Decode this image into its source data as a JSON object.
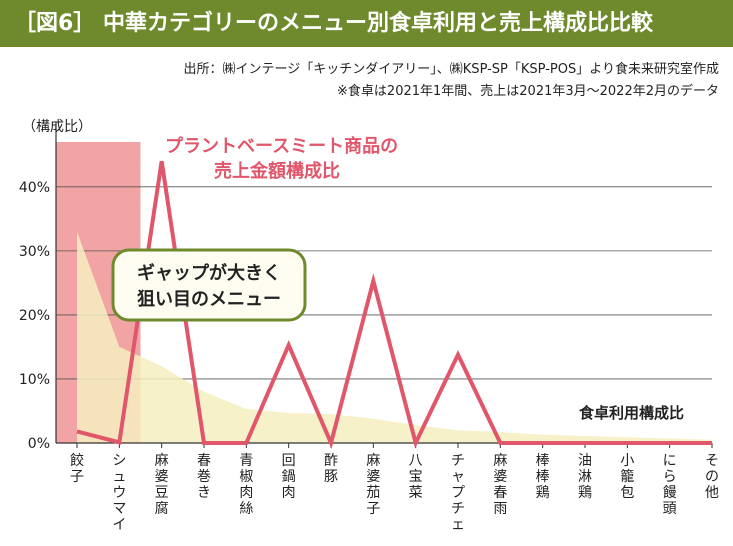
{
  "title": "［図6］ 中華カテゴリーのメニュー別食卓利用と売上構成比比較",
  "source_line1": "出所：㈱インテージ「キッチンダイアリー」、㈱KSP-SP「KSP-POS」より食未来研究室作成",
  "source_line2": "※食卓は2021年1年間、売上は2021年3月〜2022年2月のデータ",
  "colors": {
    "header": "#6e8a2c",
    "line": "#e0566a",
    "area": "#f6efbf",
    "highlight": "#f2a4a4",
    "callout_border": "#6e8a2c"
  },
  "chart_data": {
    "type": "line",
    "ylabel": "（構成比）",
    "ylim": [
      0,
      47
    ],
    "yticks": [
      "0%",
      "10%",
      "20%",
      "30%",
      "40%"
    ],
    "ytick_values": [
      0,
      10,
      20,
      30,
      40
    ],
    "categories": [
      "餃子",
      "シュウマイ",
      "麻婆豆腐",
      "春巻き",
      "青椒肉絲",
      "回鍋肉",
      "酢豚",
      "麻婆茄子",
      "八宝菜",
      "チャプチェ",
      "麻婆春雨",
      "棒棒鶏",
      "油淋鶏",
      "小籠包",
      "にら饅頭",
      "その他"
    ],
    "series": [
      {
        "name": "プラントベースミート商品の売上金額構成比",
        "kind": "line",
        "values": [
          1.8,
          0.1,
          44,
          0,
          0,
          15.3,
          0,
          25.3,
          0,
          13.8,
          0,
          0,
          0,
          0,
          0,
          0
        ]
      },
      {
        "name": "食卓利用構成比",
        "kind": "area",
        "values": [
          33,
          15,
          12,
          8,
          5.3,
          4.7,
          4.5,
          3.8,
          2.8,
          2,
          1.7,
          1.3,
          1.1,
          0.9,
          0.7,
          0.5
        ]
      }
    ],
    "line_label": [
      "プラントベースミート商品の",
      "売上金額構成比"
    ],
    "area_label": "食卓利用構成比",
    "callout": [
      "ギャップが大きく",
      "狙い目のメニュー"
    ],
    "highlight_categories": [
      "餃子",
      "シュウマイ"
    ]
  }
}
